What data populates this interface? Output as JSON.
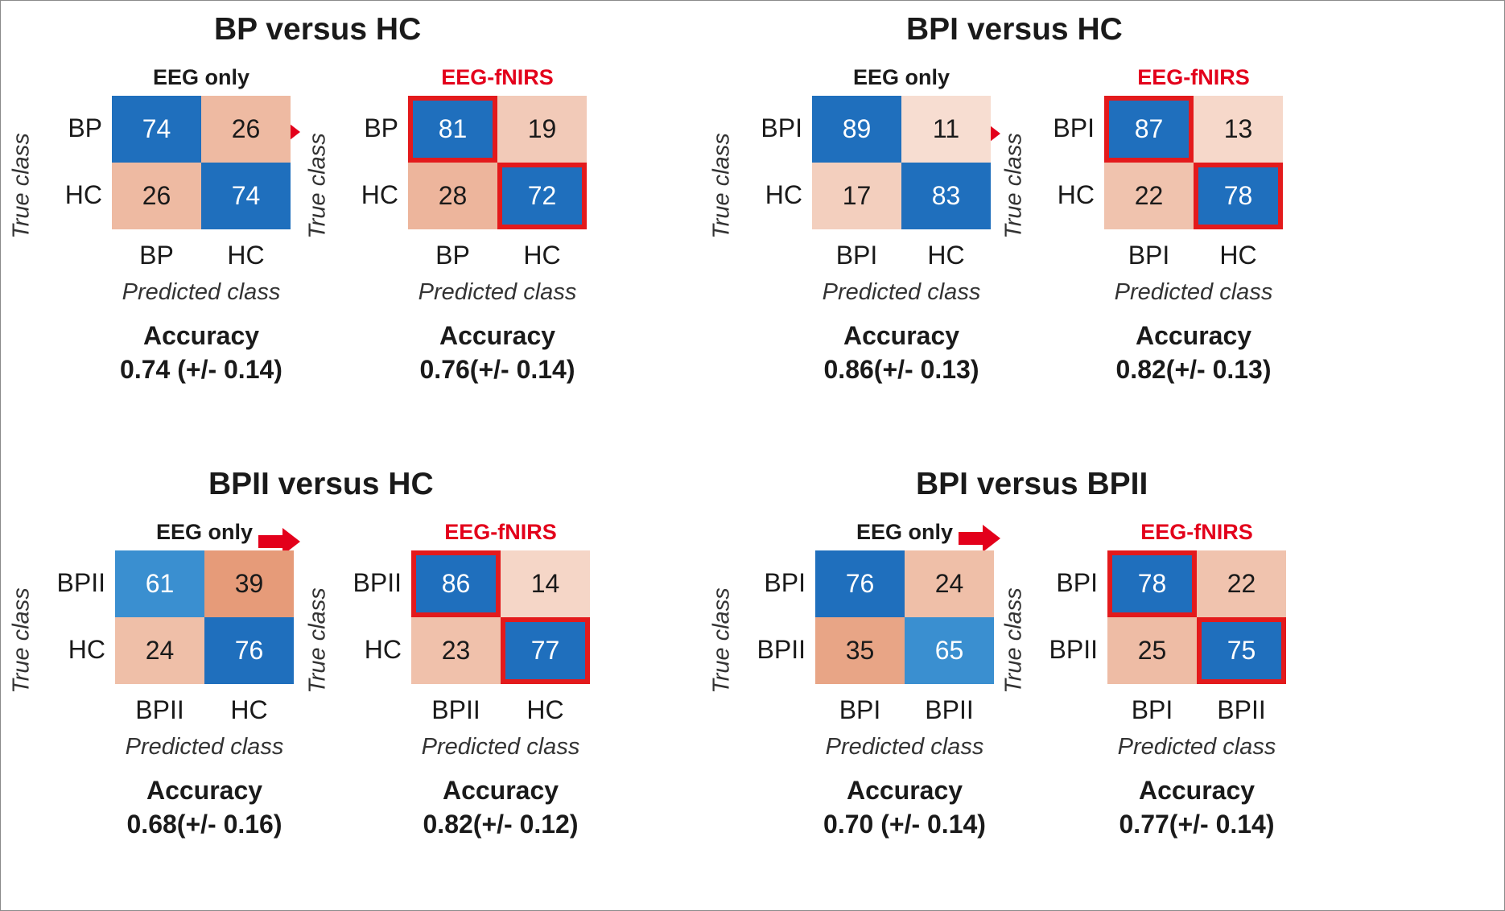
{
  "colors": {
    "blue_strong": "#1f6fbd",
    "blue_mid": "#3a8fd0",
    "highlight": "#e31a1c",
    "arrow": "#e3001b"
  },
  "chart_data": [
    {
      "type": "heatmap",
      "title": "BP versus HC",
      "panels": [
        {
          "method": "EEG only",
          "highlight": false,
          "true_labels": [
            "BP",
            "HC"
          ],
          "pred_labels": [
            "BP",
            "HC"
          ],
          "values": [
            [
              74,
              26
            ],
            [
              26,
              74
            ]
          ],
          "ylabel": "True class",
          "xlabel": "Predicted class",
          "accuracy_title": "Accuracy",
          "accuracy": "0.74 (+/- 0.14)"
        },
        {
          "method": "EEG-fNIRS",
          "highlight": true,
          "true_labels": [
            "BP",
            "HC"
          ],
          "pred_labels": [
            "BP",
            "HC"
          ],
          "values": [
            [
              81,
              19
            ],
            [
              28,
              72
            ]
          ],
          "ylabel": "True class",
          "xlabel": "Predicted class",
          "accuracy_title": "Accuracy",
          "accuracy": "0.76(+/- 0.14)"
        }
      ]
    },
    {
      "type": "heatmap",
      "title": "BPI versus HC",
      "panels": [
        {
          "method": "EEG only",
          "highlight": false,
          "true_labels": [
            "BPI",
            "HC"
          ],
          "pred_labels": [
            "BPI",
            "HC"
          ],
          "values": [
            [
              89,
              11
            ],
            [
              17,
              83
            ]
          ],
          "ylabel": "True class",
          "xlabel": "Predicted class",
          "accuracy_title": "Accuracy",
          "accuracy": "0.86(+/- 0.13)"
        },
        {
          "method": "EEG-fNIRS",
          "highlight": true,
          "true_labels": [
            "BPI",
            "HC"
          ],
          "pred_labels": [
            "BPI",
            "HC"
          ],
          "values": [
            [
              87,
              13
            ],
            [
              22,
              78
            ]
          ],
          "ylabel": "True class",
          "xlabel": "Predicted class",
          "accuracy_title": "Accuracy",
          "accuracy": "0.82(+/- 0.13)"
        }
      ]
    },
    {
      "type": "heatmap",
      "title": "BPII versus HC",
      "panels": [
        {
          "method": "EEG only",
          "highlight": false,
          "true_labels": [
            "BPII",
            "HC"
          ],
          "pred_labels": [
            "BPII",
            "HC"
          ],
          "values": [
            [
              61,
              39
            ],
            [
              24,
              76
            ]
          ],
          "ylabel": "True class",
          "xlabel": "Predicted class",
          "accuracy_title": "Accuracy",
          "accuracy": "0.68(+/- 0.16)"
        },
        {
          "method": "EEG-fNIRS",
          "highlight": true,
          "true_labels": [
            "BPII",
            "HC"
          ],
          "pred_labels": [
            "BPII",
            "HC"
          ],
          "values": [
            [
              86,
              14
            ],
            [
              23,
              77
            ]
          ],
          "ylabel": "True class",
          "xlabel": "Predicted class",
          "accuracy_title": "Accuracy",
          "accuracy": "0.82(+/- 0.12)"
        }
      ]
    },
    {
      "type": "heatmap",
      "title": "BPI versus BPII",
      "panels": [
        {
          "method": "EEG only",
          "highlight": false,
          "true_labels": [
            "BPI",
            "BPII"
          ],
          "pred_labels": [
            "BPI",
            "BPII"
          ],
          "values": [
            [
              76,
              24
            ],
            [
              35,
              65
            ]
          ],
          "ylabel": "True class",
          "xlabel": "Predicted class",
          "accuracy_title": "Accuracy",
          "accuracy": "0.70 (+/- 0.14)"
        },
        {
          "method": "EEG-fNIRS",
          "highlight": true,
          "true_labels": [
            "BPI",
            "BPII"
          ],
          "pred_labels": [
            "BPI",
            "BPII"
          ],
          "values": [
            [
              78,
              22
            ],
            [
              25,
              75
            ]
          ],
          "ylabel": "True class",
          "xlabel": "Predicted class",
          "accuracy_title": "Accuracy",
          "accuracy": "0.77(+/- 0.14)"
        }
      ]
    }
  ]
}
